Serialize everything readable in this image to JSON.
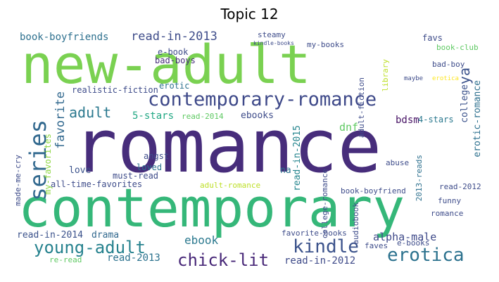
{
  "title": "Topic 12",
  "words": {
    "new_adult": {
      "text": "new-adult",
      "color": "#7ad151"
    },
    "romance": {
      "text": "romance",
      "color": "#472d7b"
    },
    "contemporary": {
      "text": "contemporary",
      "color": "#35b779"
    },
    "contemporary_romance": {
      "text": "contemporary-romance",
      "color": "#3e4989"
    },
    "series": {
      "text": "series",
      "color": "#31688e"
    },
    "young_adult": {
      "text": "young-adult",
      "color": "#26828e"
    },
    "kindle": {
      "text": "kindle",
      "color": "#3b528b"
    },
    "erotica": {
      "text": "erotica",
      "color": "#2c728e"
    },
    "chick_lit": {
      "text": "chick-lit",
      "color": "#482878"
    },
    "adult": {
      "text": "adult",
      "color": "#2a788e"
    },
    "read_in_2013": {
      "text": "read-in-2013",
      "color": "#3e4c8a"
    },
    "book_boyfriends": {
      "text": "book-boyfriends",
      "color": "#2d708e"
    },
    "favorite": {
      "text": "favorite",
      "color": "#31688e"
    },
    "ya": {
      "text": "ya",
      "color": "#3b528b"
    },
    "read_in_2012": {
      "text": "read-in-2012",
      "color": "#3e4a89"
    },
    "read_in_2014": {
      "text": "read-in-2014",
      "color": "#3b528b"
    },
    "drama": {
      "text": "drama",
      "color": "#31688e"
    },
    "alpha_male": {
      "text": "alpha-male",
      "color": "#3e4989"
    },
    "read_2013": {
      "text": "read-2013",
      "color": "#2c728e"
    },
    "ebook": {
      "text": "ebook",
      "color": "#2a788e"
    },
    "e_book": {
      "text": "e-book",
      "color": "#3e4c8a"
    },
    "bad_boys": {
      "text": "bad-boys",
      "color": "#472d7b"
    },
    "erotic": {
      "text": "erotic",
      "color": "#2c728e"
    },
    "five_stars": {
      "text": "5-stars",
      "color": "#22a884"
    },
    "ebooks": {
      "text": "ebooks",
      "color": "#3e4c8a"
    },
    "dnf": {
      "text": "dnf",
      "color": "#5ec962"
    },
    "bdsm": {
      "text": "bdsm",
      "color": "#471365"
    },
    "college": {
      "text": "college",
      "color": "#3b528b"
    },
    "erotic_romance": {
      "text": "erotic-romance",
      "color": "#2d708e"
    },
    "realistic_fiction": {
      "text": "realistic-fiction",
      "color": "#3e4c8a"
    },
    "my_favorites": {
      "text": "my-favorites",
      "color": "#8fd744"
    },
    "made_me_cry": {
      "text": "made-me-cry",
      "color": "#3e4c8a"
    },
    "love": {
      "text": "love",
      "color": "#3b528b"
    },
    "angst": {
      "text": "angst",
      "color": "#3e4c8a"
    },
    "loved": {
      "text": "loved",
      "color": "#2c728e"
    },
    "finished": {
      "text": "finished",
      "color": "#3e4c8a"
    },
    "must_read": {
      "text": "must-read",
      "color": "#3e4c8a"
    },
    "all_time_favorites": {
      "text": "all-time-favorites",
      "color": "#3e4c8a"
    },
    "na": {
      "text": "na",
      "color": "#2c728e"
    },
    "read_in_2015": {
      "text": "read-in-2015",
      "color": "#25858e"
    },
    "read_2014": {
      "text": "read-2014",
      "color": "#5ec962"
    },
    "four_stars": {
      "text": "4-stars",
      "color": "#2a788e"
    },
    "adult_romance": {
      "text": "adult-romance",
      "color": "#bddf26"
    },
    "book_boyfriend": {
      "text": "book-boyfriend",
      "color": "#3e4c8a"
    },
    "college_romance": {
      "text": "college-romance",
      "color": "#3e4c8a"
    },
    "abuse": {
      "text": "abuse",
      "color": "#3e4c8a"
    },
    "reads_2013": {
      "text": "2013-reads",
      "color": "#2d708e"
    },
    "read_2012": {
      "text": "read-2012",
      "color": "#3e4c8a"
    },
    "favs": {
      "text": "favs",
      "color": "#3e4c8a"
    },
    "book_club": {
      "text": "book-club",
      "color": "#5ec962"
    },
    "steamy": {
      "text": "steamy",
      "color": "#3e4c8a"
    },
    "my_books": {
      "text": "my-books",
      "color": "#3e4c8a"
    },
    "bad_boy": {
      "text": "bad-boy",
      "color": "#3e4c8a"
    },
    "adult_fiction": {
      "text": "adult-fiction",
      "color": "#3e4c8a"
    },
    "library": {
      "text": "library",
      "color": "#bddf26"
    },
    "audiobook": {
      "text": "audiobook",
      "color": "#3e4c8a"
    },
    "funny": {
      "text": "funny",
      "color": "#3e4c8a"
    },
    "romance_accent": {
      "text": "romance",
      "color": "#3e4c8a"
    },
    "e_books": {
      "text": "e-books",
      "color": "#3e4c8a"
    },
    "favorite_books": {
      "text": "favorite-books",
      "color": "#3e4c8a"
    },
    "faves": {
      "text": "faves",
      "color": "#3e4c8a"
    },
    "re_read": {
      "text": "re-read",
      "color": "#5ec962"
    },
    "maybe": {
      "text": "maybe",
      "color": "#3e4c8a"
    },
    "erotica_small": {
      "text": "erotica",
      "color": "#fde725"
    },
    "kindle_books": {
      "text": "kindle-books",
      "color": "#3e4c8a"
    }
  }
}
